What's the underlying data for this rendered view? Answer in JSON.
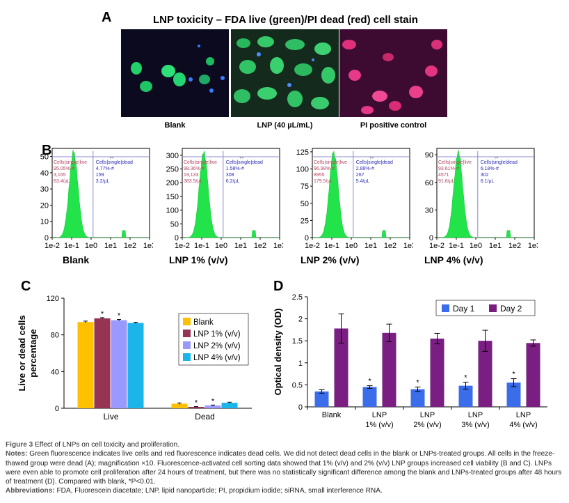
{
  "panel_a": {
    "letter": "A",
    "title": "LNP toxicity – FDA live (green)/PI dead (red) cell stain",
    "images": [
      {
        "label": "Blank"
      },
      {
        "label": "LNP (40 µL/mL)"
      },
      {
        "label": "PI positive control"
      }
    ]
  },
  "panel_b": {
    "letter": "B",
    "x_ticks": [
      "1e-2",
      "1e-1",
      "1e0",
      "1e1",
      "1e2",
      "1e3"
    ],
    "plots": [
      {
        "name": "Blank",
        "y_ticks": [
          "0",
          "10",
          "20",
          "30",
          "40",
          "50"
        ],
        "ymax": 55,
        "live": [
          "Cells|single|live",
          "95.05%-#",
          "3,165",
          "63.4/µL"
        ],
        "dead": [
          "Cells|single|dead",
          "4.77%-#",
          "159",
          "3.2/µL"
        ]
      },
      {
        "name": "LNP 1% (v/v)",
        "y_ticks": [
          "0",
          "50",
          "100",
          "150",
          "200",
          "250",
          "300"
        ],
        "ymax": 325,
        "live": [
          "Cells|single|live",
          "98.36%-#",
          "19,133",
          "383.5/µL"
        ],
        "dead": [
          "Cells|single|dead",
          "1.58%-#",
          "308",
          "6.2/µL"
        ]
      },
      {
        "name": "LNP 2% (v/v)",
        "y_ticks": [
          "0",
          "25",
          "50",
          "75",
          "100",
          "125"
        ],
        "ymax": 130,
        "live": [
          "Cells|single|live",
          "96.98%-#",
          "8955",
          "179.5/µL"
        ],
        "dead": [
          "Cells|single|dead",
          "2.89%-#",
          "267",
          "5.4/µL"
        ]
      },
      {
        "name": "LNP 4% (v/v)",
        "y_ticks": [
          "0",
          "30",
          "60",
          "90"
        ],
        "ymax": 97,
        "live": [
          "Cells|single|live",
          "93.61%-#",
          "4571",
          "91.6/µL"
        ],
        "dead": [
          "Cells|single|dead",
          "6.18%-#",
          "302",
          "6.1/µL"
        ]
      }
    ]
  },
  "chart_data": [
    {
      "type": "bar",
      "letter": "C",
      "ylabel": "Live or dead cells percentage",
      "ylim": [
        0,
        120
      ],
      "yticks": [
        0,
        40,
        80,
        120
      ],
      "categories": [
        "Live",
        "Dead"
      ],
      "series": [
        {
          "name": "Blank",
          "color": "#FFC000",
          "values": [
            94,
            5
          ],
          "errors": [
            1.0,
            0.8
          ],
          "sig": [
            "",
            ""
          ]
        },
        {
          "name": "LNP 1% (v/v)",
          "color": "#953553",
          "values": [
            98,
            1.5
          ],
          "errors": [
            0.8,
            0.3
          ],
          "sig": [
            "*",
            "*"
          ]
        },
        {
          "name": "LNP 2% (v/v)",
          "color": "#9999FF",
          "values": [
            96,
            3
          ],
          "errors": [
            0.8,
            0.5
          ],
          "sig": [
            "*",
            "*"
          ]
        },
        {
          "name": "LNP 4% (v/v)",
          "color": "#1CB5EA",
          "values": [
            93,
            6
          ],
          "errors": [
            0.8,
            0.6
          ],
          "sig": [
            "",
            ""
          ]
        }
      ],
      "legend": "top-right"
    },
    {
      "type": "bar",
      "letter": "D",
      "ylabel": "Optical density (OD)",
      "ylim": [
        0,
        2.5
      ],
      "yticks": [
        "0",
        "0.5",
        "1",
        "1.5",
        "2",
        "2.5"
      ],
      "categories": [
        [
          "Blank"
        ],
        [
          "LNP",
          "1% (v/v)"
        ],
        [
          "LNP",
          "2% (v/v)"
        ],
        [
          "LNP",
          "3% (v/v)"
        ],
        [
          "LNP",
          "4% (v/v)"
        ]
      ],
      "series": [
        {
          "name": "Day 1",
          "color": "#3B6CE9",
          "values": [
            0.35,
            0.45,
            0.4,
            0.48,
            0.55
          ],
          "errors": [
            0.04,
            0.03,
            0.05,
            0.08,
            0.09
          ],
          "sig": [
            "",
            "*",
            "*",
            "*",
            "*"
          ]
        },
        {
          "name": "Day 2",
          "color": "#7A1E82",
          "values": [
            1.78,
            1.68,
            1.55,
            1.5,
            1.45
          ],
          "errors": [
            0.33,
            0.2,
            0.12,
            0.24,
            0.07
          ],
          "sig": [
            "",
            "",
            "",
            "",
            ""
          ]
        }
      ],
      "legend": "top"
    }
  ],
  "caption": {
    "figure_label": "Figure 3",
    "figure_title": "Effect of LNPs on cell toxicity and proliferation.",
    "notes_label": "Notes:",
    "notes_text": "Green fluorescence indicates live cells and red fluorescence indicates dead cells. We did not detect dead cells in the blank or LNPs-treated groups. All cells in the freeze-thawed group were dead (A); magnification ×10. Fluorescence-activated cell sorting data showed that 1% (v/v) and 2% (v/v) LNP groups increased cell viability (B and C). LNPs were even able to promote cell proliferation after 24 hours of treatment, but there was no statistically significant difference among the blank and LNPs-treated groups after 48 hours of treatment (D). Compared with blank, *P<0.01.",
    "abbrev_label": "Abbreviations:",
    "abbrev_text": "FDA, Fluorescein diacetate; LNP, lipid nanoparticle; PI, propidium iodide; siRNA, small interference RNA."
  }
}
